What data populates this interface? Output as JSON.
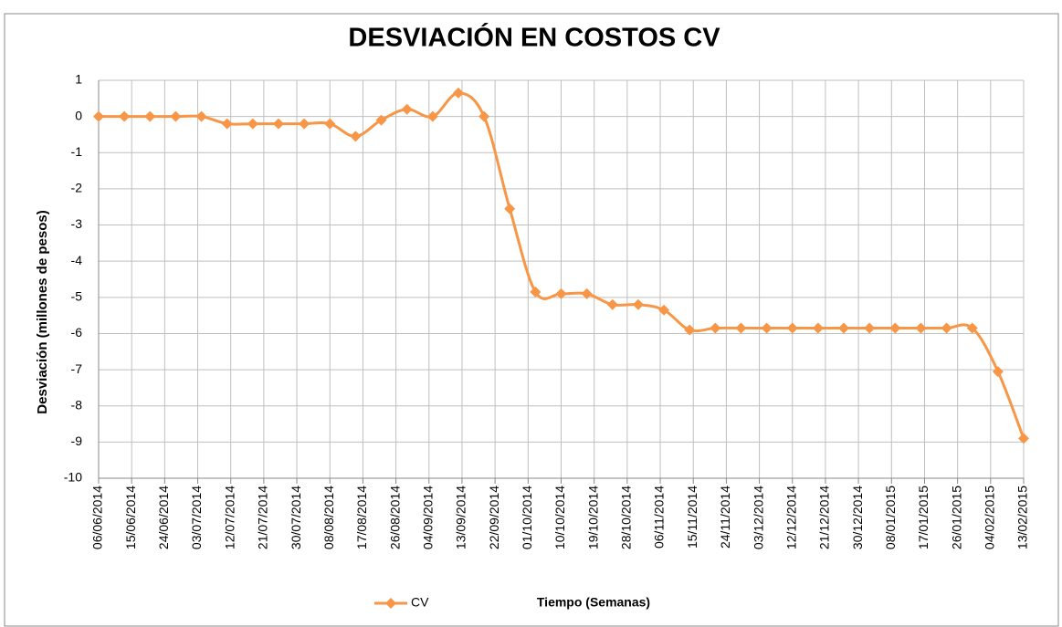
{
  "chart_data": {
    "type": "line",
    "title": "DESVIACIÓN EN COSTOS CV",
    "x_label": "Tiempo (Semanas)",
    "y_label": "Desviación  (millones de pesos)",
    "x": [
      "06/06/2014",
      "13/06/2014",
      "20/06/2014",
      "27/06/2014",
      "04/07/2014",
      "11/07/2014",
      "18/07/2014",
      "25/07/2014",
      "01/08/2014",
      "08/08/2014",
      "15/08/2014",
      "22/08/2014",
      "29/08/2014",
      "05/09/2014",
      "12/09/2014",
      "19/09/2014",
      "26/09/2014",
      "03/10/2014",
      "10/10/2014",
      "17/10/2014",
      "24/10/2014",
      "31/10/2014",
      "07/11/2014",
      "14/11/2014",
      "21/11/2014",
      "28/11/2014",
      "05/12/2014",
      "12/12/2014",
      "19/12/2014",
      "26/12/2014",
      "02/01/2015",
      "09/01/2015",
      "16/01/2015",
      "23/01/2015",
      "30/01/2015",
      "06/02/2015",
      "13/02/2015"
    ],
    "series": [
      {
        "name": "CV",
        "color": "#f79646",
        "values": [
          0,
          0,
          0,
          0,
          0,
          -0.2,
          -0.2,
          -0.2,
          -0.2,
          -0.2,
          -0.55,
          -0.1,
          0.2,
          0,
          0.65,
          0,
          -2.55,
          -4.85,
          -4.9,
          -4.9,
          -5.2,
          -5.2,
          -5.35,
          -5.9,
          -5.85,
          -5.85,
          -5.85,
          -5.85,
          -5.85,
          -5.85,
          -5.85,
          -5.85,
          -5.85,
          -5.85,
          -5.85,
          -7.05,
          -8.9
        ]
      }
    ],
    "xlim": [
      "06/06/2014",
      "13/02/2015"
    ],
    "xticks": [
      "06/06/2014",
      "15/06/2014",
      "24/06/2014",
      "03/07/2014",
      "12/07/2014",
      "21/07/2014",
      "30/07/2014",
      "08/08/2014",
      "17/08/2014",
      "26/08/2014",
      "04/09/2014",
      "13/09/2014",
      "22/09/2014",
      "01/10/2014",
      "10/10/2014",
      "19/10/2014",
      "28/10/2014",
      "06/11/2014",
      "15/11/2014",
      "24/11/2014",
      "03/12/2014",
      "12/12/2014",
      "21/12/2014",
      "30/12/2014",
      "08/01/2015",
      "17/01/2015",
      "26/01/2015",
      "04/02/2015",
      "13/02/2015"
    ],
    "ylim": [
      -10,
      1
    ],
    "yticks": [
      1,
      0,
      -1,
      -2,
      -3,
      -4,
      -5,
      -6,
      -7,
      -8,
      -9,
      -10
    ],
    "grid": true,
    "legend": "bottom"
  }
}
